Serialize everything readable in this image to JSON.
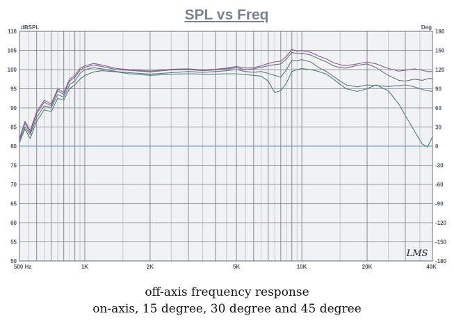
{
  "caption": {
    "line1": "off-axis frequency response",
    "line2": "on-axis, 15 degree, 30 degree and 45 degree"
  },
  "watermark": "LMS",
  "colors": {
    "title": "#7a8190",
    "plot_bg": "#f1f2f4",
    "grid_major": "#7c7e82",
    "grid_minor": "#a9abaf",
    "zero_line": "#6aa9b8",
    "axis_text": "#4f5560",
    "series_on_axis": "#8a5b94",
    "series_15": "#6f6b82",
    "series_30": "#5f7690",
    "series_45": "#4f7f74"
  },
  "chart_data": {
    "type": "line",
    "title": "SPL vs Freq",
    "ylabel_left": "dBSPL",
    "ylabel_right": "Deg",
    "xscale": "log",
    "xlim": [
      500,
      40000
    ],
    "ylim": [
      50,
      110
    ],
    "y2lim": [
      -180,
      180
    ],
    "grid": true,
    "legend": "none",
    "x_tick_labels": [
      {
        "value": 500,
        "label": "500 Hz"
      },
      {
        "value": 1000,
        "label": "1K"
      },
      {
        "value": 2000,
        "label": "2K"
      },
      {
        "value": 5000,
        "label": "5K"
      },
      {
        "value": 10000,
        "label": "10K"
      },
      {
        "value": 20000,
        "label": "20K"
      },
      {
        "value": 40000,
        "label": "40K"
      }
    ],
    "y_ticks": [
      50,
      55,
      60,
      65,
      70,
      75,
      80,
      85,
      90,
      95,
      100,
      105,
      110
    ],
    "y2_ticks": [
      -180,
      -150,
      -120,
      -90,
      -60,
      -30,
      0,
      30,
      60,
      90,
      120,
      150,
      180
    ],
    "x": [
      500,
      530,
      560,
      600,
      650,
      700,
      750,
      800,
      850,
      900,
      950,
      1000,
      1100,
      1200,
      1400,
      1600,
      1800,
      2000,
      2500,
      3000,
      3500,
      4000,
      4500,
      5000,
      5500,
      6000,
      6500,
      7000,
      7500,
      8000,
      8500,
      9000,
      9500,
      10000,
      11000,
      12000,
      13000,
      14000,
      15000,
      16000,
      18000,
      20000,
      22000,
      25000,
      28000,
      30000,
      33000,
      36000,
      38000,
      40000
    ],
    "series": [
      {
        "values": [
          82,
          86.5,
          84,
          89,
          92,
          91,
          95,
          94,
          97.5,
          98.5,
          100.3,
          101,
          101.6,
          101.2,
          100.3,
          100,
          99.8,
          99.6,
          100.1,
          100.2,
          99.9,
          100.1,
          100.4,
          100.8,
          100.4,
          100.5,
          101,
          101.6,
          102,
          102.2,
          103.5,
          105.3,
          104.8,
          105,
          104.5,
          103.5,
          102.8,
          101.8,
          101.3,
          101,
          101.5,
          102,
          101.5,
          100.3,
          99.6,
          99.8,
          100.2,
          99.8,
          99.5,
          99.5
        ]
      },
      {
        "values": [
          81.5,
          86,
          83.5,
          88.5,
          91.5,
          90.5,
          94.5,
          93.5,
          97,
          98,
          99.8,
          100.6,
          101.2,
          100.8,
          100,
          99.8,
          99.6,
          99.4,
          99.9,
          100,
          99.7,
          99.9,
          100.2,
          100.5,
          100,
          100.2,
          100.6,
          101,
          101.3,
          101.5,
          102.8,
          104.5,
          104.2,
          104.3,
          103.8,
          102.8,
          102,
          101,
          100.5,
          100.4,
          101.1,
          101.5,
          100.5,
          98.5,
          97.2,
          97,
          97.5,
          97.2,
          97.6,
          97.7
        ]
      },
      {
        "values": [
          80.8,
          85,
          83,
          87.5,
          90.5,
          90,
          93.5,
          92.8,
          96,
          97,
          99,
          100,
          100.5,
          100.2,
          99.5,
          99.2,
          99,
          98.8,
          99.2,
          99.5,
          99.3,
          99.5,
          99.7,
          100,
          99.5,
          99.3,
          99.5,
          99,
          98.5,
          98,
          100,
          102.5,
          102.3,
          102.6,
          102,
          100.5,
          99.5,
          98.2,
          97,
          96,
          95.5,
          96,
          95.8,
          95.6,
          95.8,
          96,
          95.5,
          94.8,
          94.5,
          94.3
        ]
      },
      {
        "values": [
          81,
          84.5,
          82,
          86.5,
          89.5,
          89,
          92.5,
          92,
          95,
          96,
          97.5,
          98.5,
          99.4,
          99.7,
          99.4,
          98.9,
          98.7,
          98.5,
          98.8,
          98.9,
          98.8,
          98.8,
          98.9,
          98.9,
          98.7,
          98.5,
          98.3,
          97,
          94,
          94.5,
          96.5,
          99.5,
          100,
          100.3,
          100,
          99.5,
          98.8,
          97.5,
          96.2,
          95,
          94.3,
          95,
          96,
          94.5,
          91,
          88,
          84,
          80.5,
          79.8,
          82.5
        ]
      }
    ]
  }
}
